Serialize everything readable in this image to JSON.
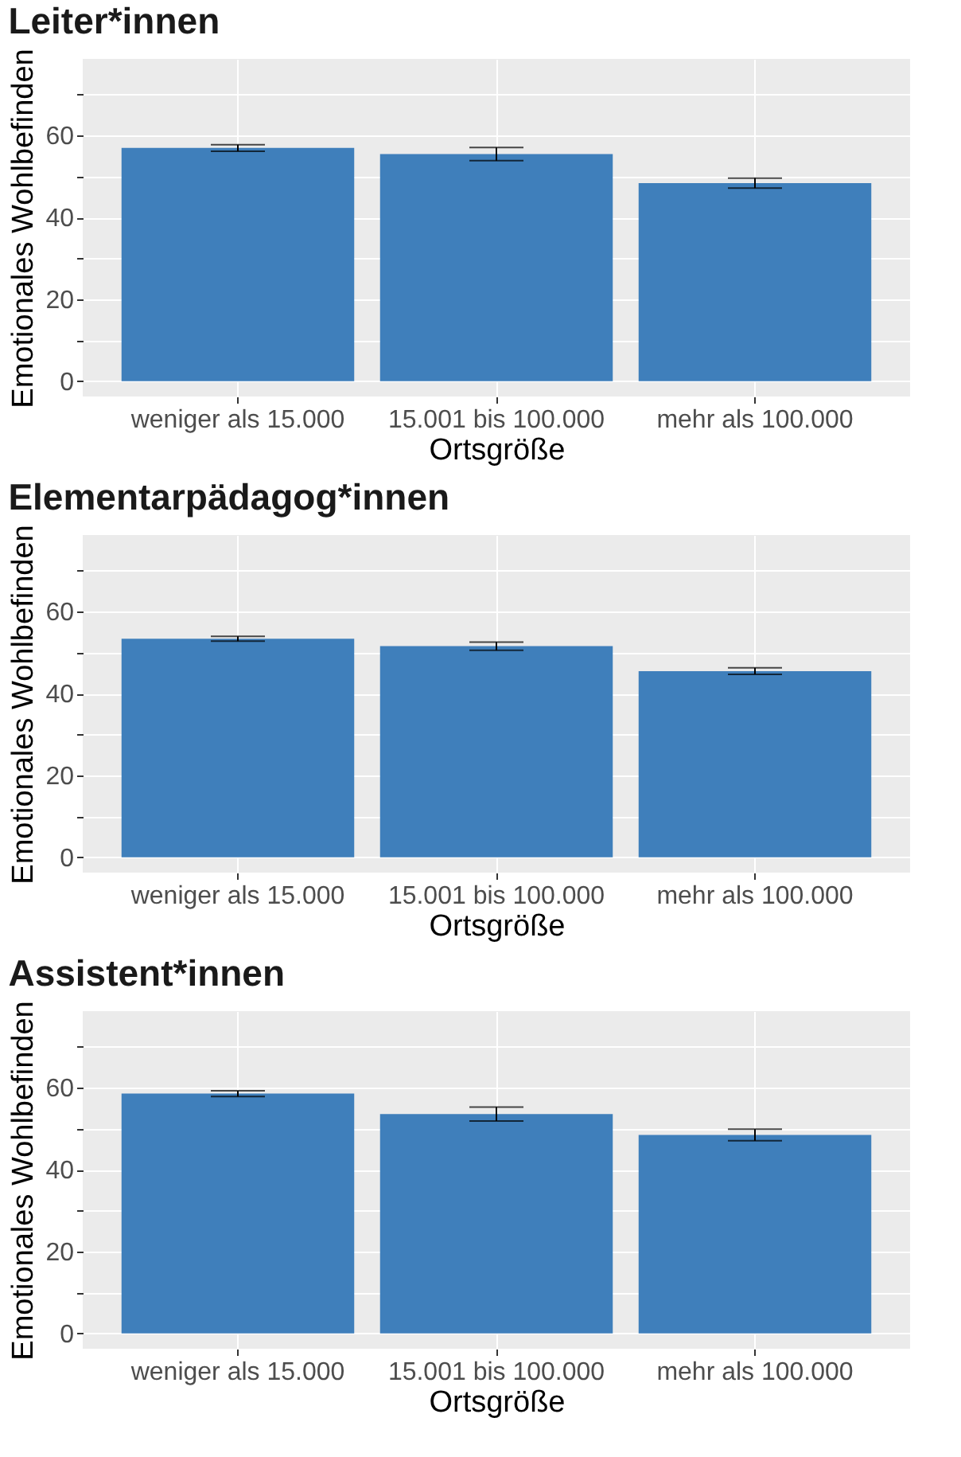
{
  "chart_data": [
    {
      "type": "bar",
      "title": "Leiter*innen",
      "xlabel": "Ortsgröße",
      "ylabel": "Emotionales Wohlbefinden",
      "categories": [
        "weniger als 15.000",
        "15.001 bis 100.000",
        "mehr als 100.000"
      ],
      "values": [
        57.0,
        55.5,
        48.4
      ],
      "errors": [
        0.8,
        1.6,
        1.2
      ],
      "color": "#3f7fbb",
      "ylim": [
        -3.75,
        78.75
      ],
      "yticks": [
        0,
        {
          "value": 10,
          "label": null
        },
        20,
        {
          "value": 30,
          "label": null
        },
        40,
        {
          "value": 50,
          "label": null
        },
        60,
        {
          "value": 70,
          "label": null
        }
      ],
      "grid": true
    },
    {
      "type": "bar",
      "title": "Elementarpädagog*innen",
      "xlabel": "Ortsgröße",
      "ylabel": "Emotionales Wohlbefinden",
      "categories": [
        "weniger als 15.000",
        "15.001 bis 100.000",
        "mehr als 100.000"
      ],
      "values": [
        53.4,
        51.6,
        45.5
      ],
      "errors": [
        0.6,
        1.0,
        0.8
      ],
      "color": "#3f7fbb",
      "ylim": [
        -3.75,
        78.75
      ],
      "yticks": [
        0,
        {
          "value": 10,
          "label": null
        },
        20,
        {
          "value": 30,
          "label": null
        },
        40,
        {
          "value": 50,
          "label": null
        },
        60,
        {
          "value": 70,
          "label": null
        }
      ],
      "grid": true
    },
    {
      "type": "bar",
      "title": "Assistent*innen",
      "xlabel": "Ortsgröße",
      "ylabel": "Emotionales Wohlbefinden",
      "categories": [
        "weniger als 15.000",
        "15.001 bis 100.000",
        "mehr als 100.000"
      ],
      "values": [
        58.6,
        53.6,
        48.5
      ],
      "errors": [
        0.7,
        1.7,
        1.4
      ],
      "color": "#3f7fbb",
      "ylim": [
        -3.75,
        78.75
      ],
      "yticks": [
        0,
        {
          "value": 10,
          "label": null
        },
        20,
        {
          "value": 30,
          "label": null
        },
        40,
        {
          "value": 50,
          "label": null
        },
        60,
        {
          "value": 70,
          "label": null
        }
      ],
      "grid": true
    }
  ]
}
